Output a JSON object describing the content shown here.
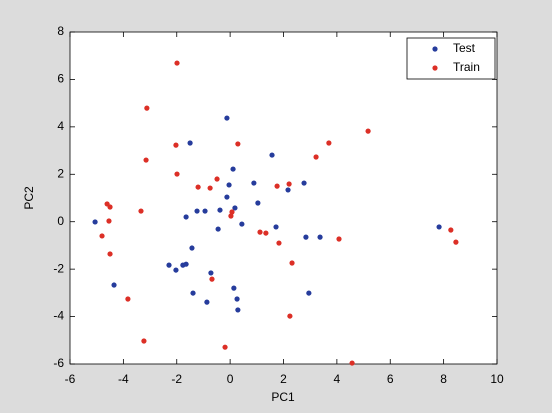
{
  "chart_data": {
    "type": "scatter",
    "x_label": "PC1",
    "y_label": "PC2",
    "xlim": [
      -6,
      10
    ],
    "xticks": [
      -6,
      -4,
      -2,
      0,
      2,
      4,
      6,
      8,
      10
    ],
    "ylim": [
      -6,
      8
    ],
    "yticks": [
      -6,
      -4,
      -2,
      0,
      2,
      4,
      6,
      8
    ],
    "legend": "upper right",
    "series": [
      {
        "name": "Test",
        "color": "#263c9c",
        "x": [
          -5.06,
          -4.35,
          -1.5,
          -0.12,
          0.11,
          1.57,
          -1.65,
          -1.24,
          -0.94,
          -0.38,
          0.18,
          0.89,
          -0.04,
          1.04,
          2.17,
          2.77,
          1.72,
          2.84,
          3.37,
          0.44,
          -0.45,
          -1.43,
          -2.29,
          -2.03,
          -1.77,
          -1.65,
          -0.72,
          -1.39,
          -0.87,
          0.14,
          0.26,
          0.29,
          2.95,
          7.83,
          -0.12
        ],
        "y": [
          -0.01,
          -2.67,
          3.32,
          4.37,
          2.22,
          2.81,
          0.2,
          0.45,
          0.45,
          0.49,
          0.58,
          1.63,
          1.55,
          0.79,
          1.34,
          1.63,
          -0.22,
          -0.65,
          -0.65,
          -0.1,
          -0.31,
          -1.11,
          -1.83,
          -2.04,
          -1.83,
          -1.79,
          -2.16,
          -3.01,
          -3.39,
          -2.8,
          -3.26,
          -3.72,
          -3.01,
          -0.22,
          1.04
        ]
      },
      {
        "name": "Train",
        "color": "#dc2f26",
        "x": [
          -1.99,
          -3.12,
          -3.15,
          -2.03,
          0.29,
          5.17,
          3.7,
          3.22,
          -1.99,
          -1.2,
          -0.75,
          -0.49,
          1.76,
          2.21,
          -4.61,
          -4.5,
          -4.54,
          -3.34,
          -4.8,
          -4.5,
          0.07,
          0.03,
          1.12,
          1.34,
          1.83,
          4.08,
          2.32,
          -0.68,
          -3.83,
          2.24,
          -3.23,
          -0.19,
          4.57,
          8.27,
          8.46
        ],
        "y": [
          6.69,
          4.79,
          2.6,
          3.23,
          3.28,
          3.82,
          3.32,
          2.73,
          2.01,
          1.46,
          1.42,
          1.8,
          1.5,
          1.59,
          0.75,
          0.62,
          0.03,
          0.45,
          -0.6,
          -1.36,
          0.41,
          0.24,
          -0.44,
          -0.48,
          -0.9,
          -0.73,
          -1.74,
          -2.42,
          -3.26,
          -3.98,
          -5.03,
          -5.29,
          -5.96,
          -0.35,
          -0.86
        ]
      }
    ]
  }
}
